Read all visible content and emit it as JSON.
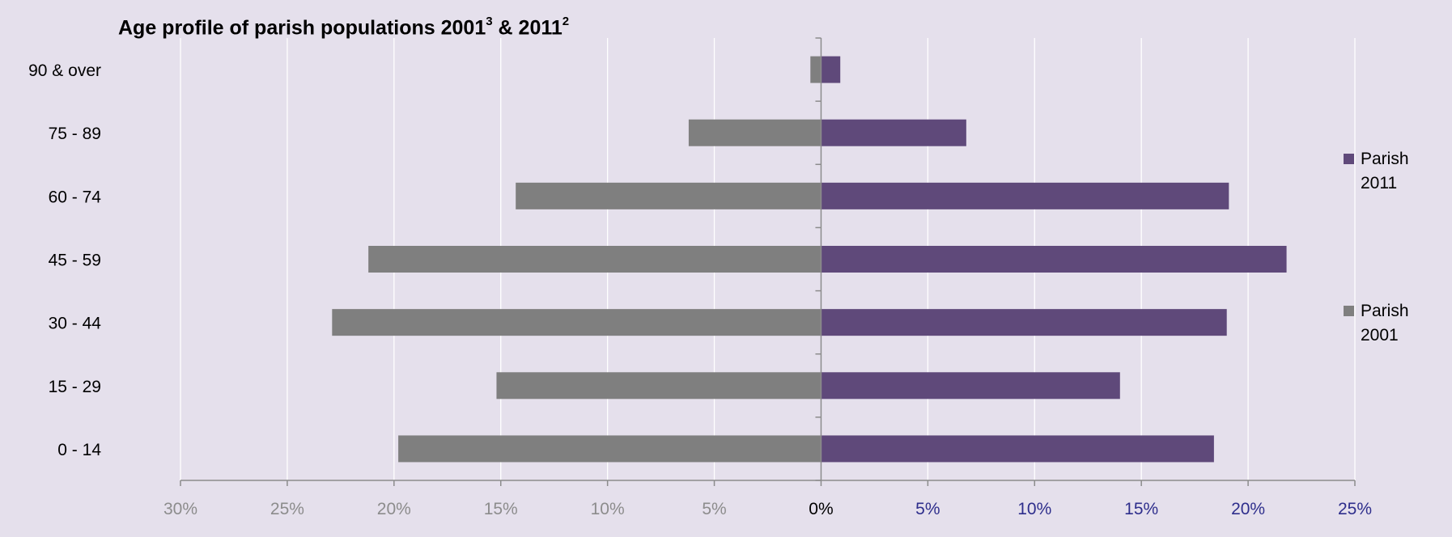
{
  "title": {
    "text_a": "Age profile of parish populations 2001",
    "sup_a": "3",
    "text_b": " & 2011",
    "sup_b": "2"
  },
  "colors": {
    "background": "#e5e0ec",
    "series_2011": "#5f497a",
    "series_2001": "#7f7f7f",
    "grid": "#ffffff",
    "axis": "#8c8c8c",
    "left_tick_label": "#8c8c8c",
    "right_tick_label": "#2e2e8c"
  },
  "legend": {
    "parish_2011": [
      "Parish",
      "2011"
    ],
    "parish_2001": [
      "Parish",
      "2001"
    ]
  },
  "chart_data": {
    "type": "bar",
    "orientation": "horizontal",
    "subtype": "population-pyramid",
    "categories": [
      "0 - 14",
      "15 - 29",
      "30 - 44",
      "45 - 59",
      "60 - 74",
      "75 - 89",
      "90 & over"
    ],
    "series": [
      {
        "name": "Parish 2011",
        "side": "right",
        "values": [
          18.4,
          14.0,
          19.0,
          21.8,
          19.1,
          6.8,
          0.9
        ]
      },
      {
        "name": "Parish 2001",
        "side": "left",
        "values": [
          19.8,
          15.2,
          22.9,
          21.2,
          14.3,
          6.2,
          0.5
        ]
      }
    ],
    "xlim": [
      -30,
      25
    ],
    "xticks": [
      -30,
      -25,
      -20,
      -15,
      -10,
      -5,
      0,
      5,
      10,
      15,
      20,
      25
    ],
    "xtick_labels": [
      "30%",
      "25%",
      "20%",
      "15%",
      "10%",
      "5%",
      "0%",
      "5%",
      "10%",
      "15%",
      "20%",
      "25%"
    ],
    "grid": true,
    "legend_position": "right"
  }
}
